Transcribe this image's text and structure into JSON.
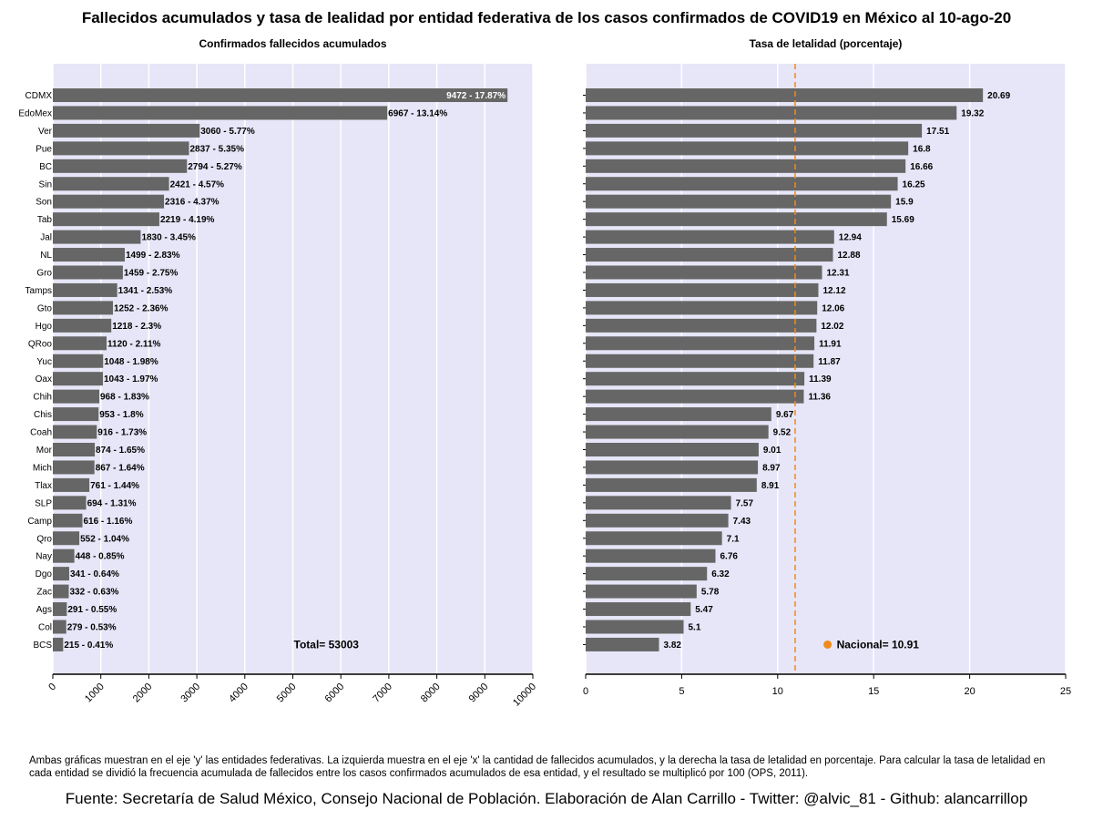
{
  "title": "Fallecidos acumulados y tasa de lealidad por entidad federativa de los casos confirmados de COVID19 en México al 10-ago-20",
  "footnote": "Ambas gráficas muestran en el eje 'y' las entidades federativas. La izquierda muestra en el eje 'x' la cantidad de fallecidos acumulados, y la derecha la tasa de letalidad en porcentaje. Para calcular la tasa de letalidad en cada entidad se dividió la frecuencia acumulada de fallecidos entre los casos confirmados acumulados de esa entidad, y el resultado se multiplicó por 100 (OPS, 2011).",
  "source": "Fuente: Secretaría de Salud México, Consejo Nacional de Población. Elaboración de Alan Carrillo - Twitter: @alvic_81 - Github: alancarrillop",
  "colors": {
    "panel_bg": "#e6e6f8",
    "bar": "#666666",
    "grid": "#ffffff",
    "national": "#f08a1c"
  },
  "chart_data": [
    {
      "type": "bar",
      "orientation": "horizontal",
      "title": "Confirmados fallecidos acumulados",
      "categories": [
        "CDMX",
        "EdoMex",
        "Ver",
        "Pue",
        "BC",
        "Sin",
        "Son",
        "Tab",
        "Jal",
        "NL",
        "Gro",
        "Tamps",
        "Gto",
        "Hgo",
        "QRoo",
        "Yuc",
        "Oax",
        "Chih",
        "Chis",
        "Coah",
        "Mor",
        "Mich",
        "Tlax",
        "SLP",
        "Camp",
        "Qro",
        "Nay",
        "Dgo",
        "Zac",
        "Ags",
        "Col",
        "BCS"
      ],
      "values": [
        9472,
        6967,
        3060,
        2837,
        2794,
        2421,
        2316,
        2219,
        1830,
        1499,
        1459,
        1341,
        1252,
        1218,
        1120,
        1048,
        1043,
        968,
        953,
        916,
        874,
        867,
        761,
        694,
        616,
        552,
        448,
        341,
        332,
        291,
        279,
        215
      ],
      "labels": [
        "9472 - 17.87%",
        "6967 - 13.14%",
        "3060 - 5.77%",
        "2837 - 5.35%",
        "2794 - 5.27%",
        "2421 - 4.57%",
        "2316 - 4.37%",
        "2219 - 4.19%",
        "1830 - 3.45%",
        "1499 - 2.83%",
        "1459 - 2.75%",
        "1341 - 2.53%",
        "1252 - 2.36%",
        "1218 - 2.3%",
        "1120 - 2.11%",
        "1048 - 1.98%",
        "1043 - 1.97%",
        "968 - 1.83%",
        "953 - 1.8%",
        "916 - 1.73%",
        "874 - 1.65%",
        "867 - 1.64%",
        "761 - 1.44%",
        "694 - 1.31%",
        "616 - 1.16%",
        "552 - 1.04%",
        "448 - 0.85%",
        "341 - 0.64%",
        "332 - 0.63%",
        "291 - 0.55%",
        "279 - 0.53%",
        "215 - 0.41%"
      ],
      "xlim": [
        0,
        10000
      ],
      "xticks": [
        0,
        1000,
        2000,
        3000,
        4000,
        5000,
        6000,
        7000,
        8000,
        9000,
        10000
      ],
      "xtick_labels": [
        "0",
        "1000",
        "2000",
        "3000",
        "4000",
        "5000",
        "6000",
        "7000",
        "8000",
        "9000",
        "10000"
      ],
      "annotation": "Total= 53003",
      "grid": true
    },
    {
      "type": "bar",
      "orientation": "horizontal",
      "title": "Tasa de letalidad (porcentaje)",
      "categories": [
        "CDMX",
        "EdoMex",
        "Ver",
        "Pue",
        "BC",
        "Sin",
        "Son",
        "Tab",
        "Jal",
        "NL",
        "Gro",
        "Tamps",
        "Gto",
        "Hgo",
        "QRoo",
        "Yuc",
        "Oax",
        "Chih",
        "Chis",
        "Coah",
        "Mor",
        "Mich",
        "Tlax",
        "SLP",
        "Camp",
        "Qro",
        "Nay",
        "Dgo",
        "Zac",
        "Ags",
        "Col",
        "BCS"
      ],
      "values": [
        20.69,
        19.32,
        17.51,
        16.8,
        16.66,
        16.25,
        15.9,
        15.69,
        12.94,
        12.88,
        12.31,
        12.12,
        12.06,
        12.02,
        11.91,
        11.87,
        11.39,
        11.36,
        9.67,
        9.52,
        9.01,
        8.97,
        8.91,
        7.57,
        7.43,
        7.1,
        6.76,
        6.32,
        5.78,
        5.47,
        5.1,
        3.82
      ],
      "labels": [
        "20.69",
        "19.32",
        "17.51",
        "16.8",
        "16.66",
        "16.25",
        "15.9",
        "15.69",
        "12.94",
        "12.88",
        "12.31",
        "12.12",
        "12.06",
        "12.02",
        "11.91",
        "11.87",
        "11.39",
        "11.36",
        "9.67",
        "9.52",
        "9.01",
        "8.97",
        "8.91",
        "7.57",
        "7.43",
        "7.1",
        "6.76",
        "6.32",
        "5.78",
        "5.47",
        "5.1",
        "3.82"
      ],
      "xlim": [
        0,
        25
      ],
      "xticks": [
        0,
        5,
        10,
        15,
        20,
        25
      ],
      "xtick_labels": [
        "0",
        "5",
        "10",
        "15",
        "20",
        "25"
      ],
      "reference_line": 10.91,
      "annotation": "Nacional= 10.91",
      "grid": true
    }
  ]
}
